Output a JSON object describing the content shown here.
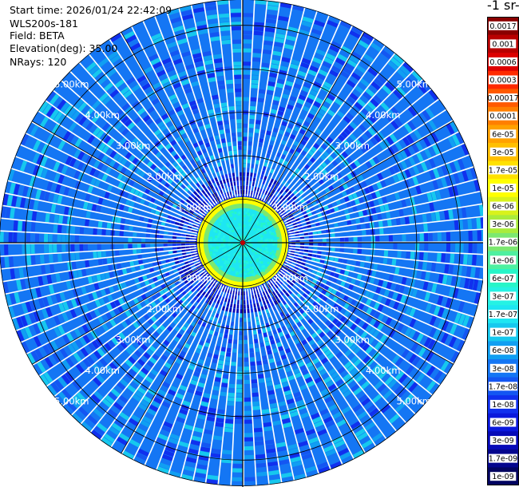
{
  "header": {
    "start_time": "Start time: 2026/01/24 22:42:09",
    "radar": "WLS200s-181",
    "field": "Field: BETA",
    "elevation": "Elevation(deg): 35.00",
    "nrays": "NRays: 120"
  },
  "colorbar": {
    "title": "-1 sr-",
    "levels": [
      {
        "label": "0.0017",
        "color": "#8a0000"
      },
      {
        "label": "0.001",
        "color": "#b80000"
      },
      {
        "label": "0.0006",
        "color": "#dd0000"
      },
      {
        "label": "0.0003",
        "color": "#ff2a00"
      },
      {
        "label": "0.00017",
        "color": "#ff5a00"
      },
      {
        "label": "0.0001",
        "color": "#ff7f00"
      },
      {
        "label": "6e-05",
        "color": "#ffa100"
      },
      {
        "label": "3e-05",
        "color": "#ffbf00"
      },
      {
        "label": "1.7e-05",
        "color": "#ffe100"
      },
      {
        "label": "1e-05",
        "color": "#ffff00"
      },
      {
        "label": "6e-06",
        "color": "#d8f21c"
      },
      {
        "label": "3e-06",
        "color": "#a9ec3c"
      },
      {
        "label": "1.7e-06",
        "color": "#7ce870"
      },
      {
        "label": "1e-06",
        "color": "#4ef0a0"
      },
      {
        "label": "6e-07",
        "color": "#27f5c8"
      },
      {
        "label": "3e-07",
        "color": "#25f2e4"
      },
      {
        "label": "1.7e-07",
        "color": "#1ee6f2"
      },
      {
        "label": "1e-07",
        "color": "#16c8ee"
      },
      {
        "label": "6e-08",
        "color": "#109ff2"
      },
      {
        "label": "3e-08",
        "color": "#1476f4"
      },
      {
        "label": "1.7e-08",
        "color": "#1456f2"
      },
      {
        "label": "1e-08",
        "color": "#1030ee"
      },
      {
        "label": "6e-09",
        "color": "#0a18dc"
      },
      {
        "label": "3e-09",
        "color": "#060ab8"
      },
      {
        "label": "1.7e-09",
        "color": "#04068e"
      },
      {
        "label": "1e-09",
        "color": "#020460"
      }
    ]
  },
  "chart_data": {
    "type": "heatmap",
    "projection": "polar-ppi",
    "field": "BETA",
    "nrays": 120,
    "range_rings_km": [
      1,
      2,
      3,
      4,
      5
    ],
    "max_range_km": 5.6,
    "ring_labels": [
      "1.00km",
      "2.00km",
      "3.00km",
      "4.00km",
      "5.00km"
    ],
    "azimuth_spokes_deg": [
      0,
      30,
      60,
      90,
      120,
      150,
      180,
      210,
      240,
      270,
      300,
      330
    ],
    "near_range_core_km": 1.0,
    "colors": {
      "grid": "#000000",
      "ray_gap": "#ffffff",
      "ring_label": "#ffffff",
      "background_field": "#1476f4"
    }
  }
}
